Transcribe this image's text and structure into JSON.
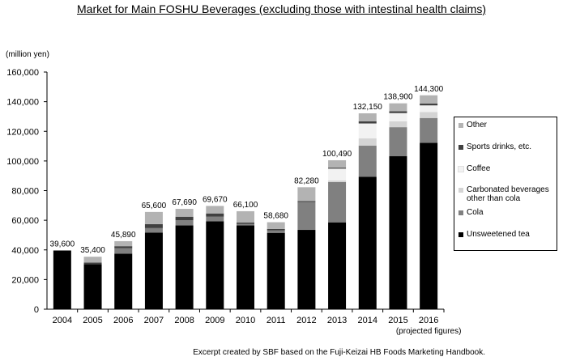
{
  "chart_data": {
    "type": "bar",
    "stacked": true,
    "title": "Market for Main FOSHU Beverages (excluding those with intestinal health claims)",
    "ylabel": "(million yen)",
    "ylim": [
      0,
      160000
    ],
    "yticks": [
      0,
      20000,
      40000,
      60000,
      80000,
      100000,
      120000,
      140000,
      160000
    ],
    "ytick_labels": [
      "0",
      "20,000",
      "40,000",
      "60,000",
      "80,000",
      "100,000",
      "120,000",
      "140,000",
      "160,000"
    ],
    "categories": [
      "2004",
      "2005",
      "2006",
      "2007",
      "2008",
      "2009",
      "2010",
      "2011",
      "2012",
      "2013",
      "2014",
      "2015",
      "2016"
    ],
    "category_note": "(projected figures)",
    "totals": [
      "39,600",
      "35,400",
      "45,890",
      "65,600",
      "67,690",
      "69,670",
      "66,100",
      "58,680",
      "82,280",
      "100,490",
      "132,150",
      "138,900",
      "144,300"
    ],
    "series": [
      {
        "name": "Unsweetened tea",
        "color": "#000000",
        "values": [
          39600,
          30400,
          37500,
          51600,
          56500,
          59300,
          56500,
          51500,
          53500,
          58600,
          89300,
          103200,
          112200
        ]
      },
      {
        "name": "Cola",
        "color": "#808080",
        "values": [
          0,
          0,
          3700,
          3100,
          3500,
          3100,
          1000,
          1600,
          18800,
          27200,
          21000,
          19600,
          16800
        ]
      },
      {
        "name": "Carbonated beverages\nother than cola",
        "color": "#d4d4d4",
        "values": [
          0,
          0,
          0,
          0,
          0,
          0,
          0,
          0,
          0,
          1000,
          5000,
          4000,
          4000
        ]
      },
      {
        "name": "Coffee",
        "color": "#f2f2f2",
        "values": [
          0,
          0,
          0,
          0,
          0,
          0,
          0,
          0,
          0,
          8000,
          10000,
          5500,
          4500
        ]
      },
      {
        "name": "Sports drinks, etc.",
        "color": "#404040",
        "values": [
          0,
          1000,
          1300,
          2700,
          2400,
          2200,
          1000,
          1000,
          700,
          700,
          1500,
          1200,
          1200
        ]
      },
      {
        "name": "Other",
        "color": "#b3b3b3",
        "values": [
          0,
          4000,
          3390,
          8200,
          5290,
          5070,
          7600,
          4580,
          9280,
          4990,
          5350,
          5400,
          5600
        ]
      }
    ],
    "legend_position": "right",
    "source": "Excerpt created by SBF based on the Fuji-Keizai HB Foods Marketing Handbook."
  }
}
